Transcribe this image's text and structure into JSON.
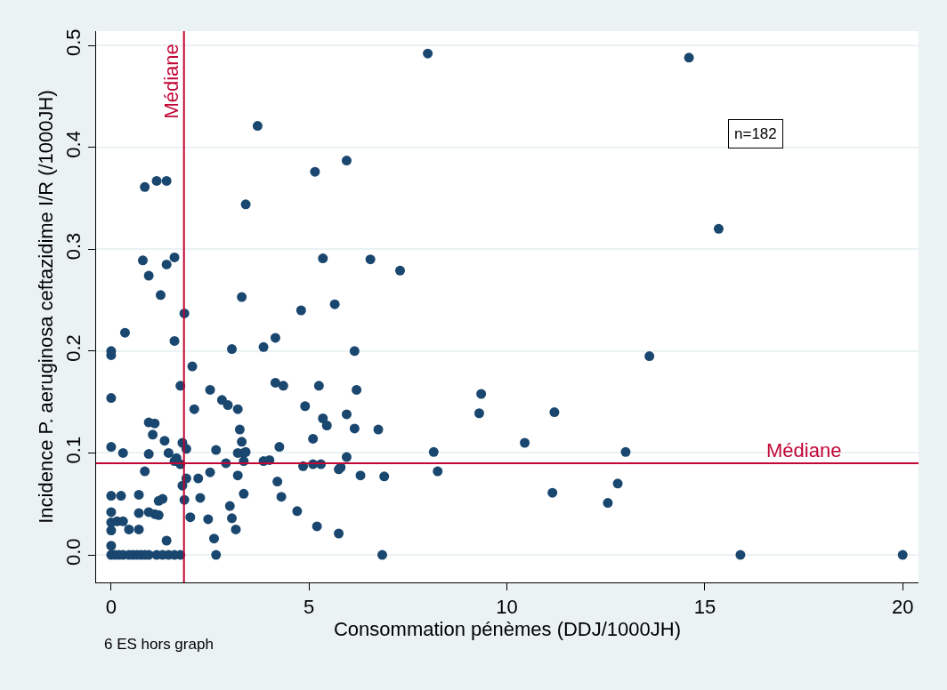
{
  "chart_data": {
    "type": "scatter",
    "xlabel": "Consommation pénèmes (DDJ/1000JH)",
    "ylabel": "Incidence P. aeruginosa ceftazidime I/R (/1000JH)",
    "annotations": [
      "n=182",
      "6 ES hors graph"
    ],
    "x": [
      8.0,
      14.6,
      3.7,
      5.95,
      5.15,
      0.85,
      1.15,
      1.4,
      3.4,
      15.35,
      0.8,
      1.6,
      1.4,
      5.35,
      6.55,
      7.3,
      0.95,
      1.25,
      3.3,
      5.65,
      4.8,
      1.85,
      1.6,
      3.85,
      4.15,
      3.05,
      6.15,
      13.6,
      0.0,
      0.0,
      0.35,
      2.05,
      1.75,
      2.5,
      2.8,
      3.2,
      2.95,
      2.1,
      0.0,
      4.15,
      4.35,
      5.25,
      6.2,
      4.9,
      5.35,
      5.45,
      5.95,
      6.15,
      6.75,
      3.25,
      9.35,
      9.3,
      11.2,
      10.45,
      0.95,
      1.1,
      1.05,
      1.35,
      3.3,
      0.0,
      1.8,
      1.9,
      2.65,
      1.45,
      1.65,
      0.3,
      3.35,
      3.2,
      3.4,
      4.25,
      5.1,
      5.95,
      8.15,
      13.0,
      1.75,
      1.6,
      3.35,
      3.85,
      4.0,
      2.9,
      4.85,
      5.1,
      5.3,
      5.75,
      5.8,
      8.25,
      0.95,
      0.85,
      2.5,
      1.9,
      2.2,
      1.8,
      3.2,
      6.3,
      6.9,
      4.2,
      12.8,
      11.15,
      12.55,
      2.25,
      1.85,
      1.2,
      1.3,
      0.25,
      0.0,
      0.7,
      3.35,
      4.3,
      0.0,
      0.7,
      0.95,
      1.1,
      1.2,
      2.0,
      2.45,
      3.05,
      4.7,
      3.0,
      0.15,
      0.3,
      0.0,
      0.45,
      0.7,
      0.0,
      3.15,
      5.2,
      5.75,
      2.6,
      1.4,
      0.0,
      0.0,
      0.1,
      0.2,
      0.3,
      0.45,
      0.55,
      0.65,
      0.75,
      0.85,
      0.95,
      1.15,
      1.3,
      1.45,
      1.6,
      1.75,
      2.65,
      6.85,
      15.9,
      20.0
    ],
    "values": [
      0.492,
      0.488,
      0.421,
      0.387,
      0.376,
      0.361,
      0.367,
      0.367,
      0.344,
      0.32,
      0.289,
      0.292,
      0.285,
      0.291,
      0.29,
      0.279,
      0.274,
      0.255,
      0.253,
      0.246,
      0.24,
      0.237,
      0.21,
      0.204,
      0.213,
      0.202,
      0.2,
      0.195,
      0.2,
      0.196,
      0.218,
      0.185,
      0.166,
      0.162,
      0.152,
      0.143,
      0.147,
      0.143,
      0.154,
      0.169,
      0.166,
      0.166,
      0.162,
      0.146,
      0.134,
      0.127,
      0.138,
      0.124,
      0.123,
      0.123,
      0.158,
      0.139,
      0.14,
      0.11,
      0.13,
      0.129,
      0.118,
      0.112,
      0.111,
      0.106,
      0.11,
      0.104,
      0.103,
      0.1,
      0.095,
      0.1,
      0.1,
      0.1,
      0.101,
      0.106,
      0.114,
      0.096,
      0.101,
      0.101,
      0.089,
      0.092,
      0.092,
      0.092,
      0.093,
      0.09,
      0.087,
      0.089,
      0.089,
      0.084,
      0.086,
      0.082,
      0.099,
      0.082,
      0.081,
      0.075,
      0.075,
      0.068,
      0.078,
      0.078,
      0.077,
      0.072,
      0.07,
      0.061,
      0.051,
      0.056,
      0.054,
      0.053,
      0.055,
      0.058,
      0.058,
      0.059,
      0.06,
      0.057,
      0.042,
      0.041,
      0.042,
      0.04,
      0.039,
      0.037,
      0.035,
      0.036,
      0.043,
      0.048,
      0.033,
      0.033,
      0.032,
      0.025,
      0.025,
      0.024,
      0.025,
      0.028,
      0.021,
      0.016,
      0.014,
      0.009,
      0,
      0,
      0,
      0,
      0,
      0,
      0,
      0,
      0,
      0,
      0,
      0,
      0,
      0,
      0,
      0,
      0,
      0,
      0
    ],
    "color": "#1a476f",
    "marker": "circle",
    "xlim": [
      -0.38,
      20.4
    ],
    "xticks": [
      0,
      5,
      10,
      15,
      20
    ],
    "ylim": [
      -0.027,
      0.514
    ],
    "yticks": [
      {
        "value": 0,
        "label": "0.0"
      },
      0.1,
      0.2,
      0.3,
      0.4,
      0.5
    ],
    "grid": "y",
    "ref_lines": [
      {
        "axis": "x",
        "value": 1.84,
        "label": "Médiane",
        "color": "#c10534"
      },
      {
        "axis": "y",
        "value": 0.09,
        "label": "Médiane",
        "color": "#c10534"
      }
    ]
  }
}
